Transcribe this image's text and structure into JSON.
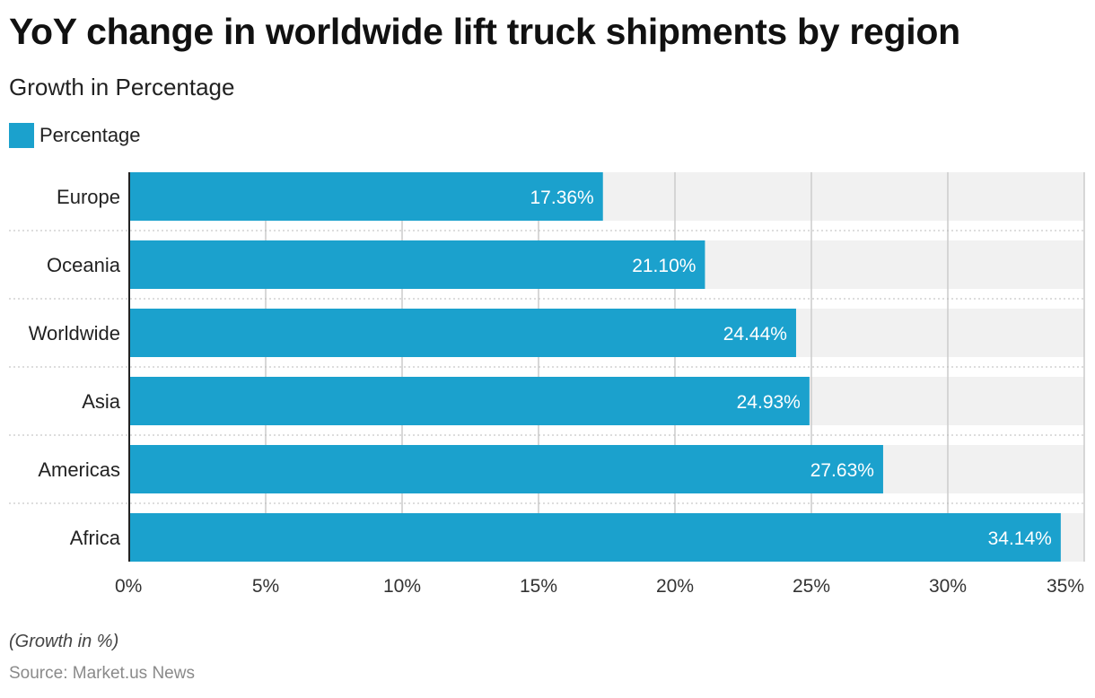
{
  "colors": {
    "bar": "#1ba1cd",
    "track": "#f1f1f1",
    "grid": "#cccccc",
    "separator": "#bbbbbb",
    "axis": "#222222",
    "label_inside": "#ffffff",
    "tick_text": "#333333",
    "category_text": "#222222"
  },
  "legend": {
    "label": "Percentage"
  },
  "footnote": "(Growth in %)",
  "source": "Source: Market.us News",
  "chart_data": {
    "type": "bar",
    "orientation": "horizontal",
    "title": "YoY change in worldwide lift truck shipments by region",
    "subtitle": "Growth in Percentage",
    "categories": [
      "Europe",
      "Oceania",
      "Worldwide",
      "Asia",
      "Americas",
      "Africa"
    ],
    "series": [
      {
        "name": "Percentage",
        "values": [
          17.36,
          21.1,
          24.44,
          24.93,
          27.63,
          34.14
        ],
        "labels": [
          "17.36%",
          "21.10%",
          "24.44%",
          "24.93%",
          "27.63%",
          "34.14%"
        ]
      }
    ],
    "xlim": [
      0,
      35
    ],
    "xticks": [
      0,
      5,
      10,
      15,
      20,
      25,
      30,
      35
    ],
    "xtick_labels": [
      "0%",
      "5%",
      "10%",
      "15%",
      "20%",
      "25%",
      "30%",
      "35%"
    ],
    "xlabel": "",
    "ylabel": "",
    "grid": true,
    "legend_position": "top-left"
  }
}
